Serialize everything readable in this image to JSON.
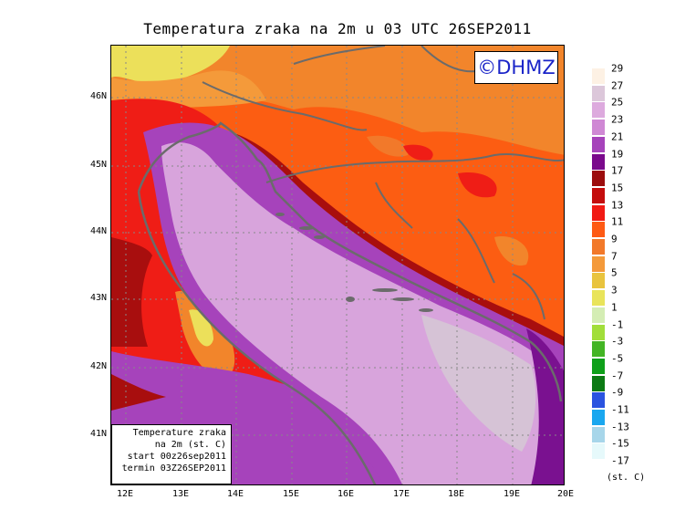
{
  "title": "Temperatura zraka na 2m u 03 UTC 26SEP2011",
  "badge": "©DHMZ",
  "infobox": {
    "line1": "Temperature zraka",
    "line2": "na 2m (st. C)",
    "line3": "start 00z26sep2011",
    "line4": "termin 03Z26SEP2011"
  },
  "y_axis": [
    "46N",
    "45N",
    "44N",
    "43N",
    "42N",
    "41N"
  ],
  "x_axis": [
    "12E",
    "13E",
    "14E",
    "15E",
    "16E",
    "17E",
    "18E",
    "19E",
    "20E"
  ],
  "legend": {
    "labels": [
      "29",
      "27",
      "25",
      "23",
      "21",
      "19",
      "17",
      "15",
      "13",
      "11",
      "9",
      "7",
      "5",
      "3",
      "1",
      "-1",
      "-3",
      "-5",
      "-7",
      "-9",
      "-11",
      "-13",
      "-15",
      "-17"
    ],
    "colors": [
      "#fdf1e4",
      "#dcc7da",
      "#ddaade",
      "#cf88d4",
      "#a643bb",
      "#7a0a8c",
      "#9c0d0d",
      "#c40d0d",
      "#f11a14",
      "#fe5a14",
      "#f2792a",
      "#f49a3a",
      "#e9c43e",
      "#e9e45a",
      "#d4edb4",
      "#a1de3a",
      "#43b524",
      "#0fa01a",
      "#0c7a14",
      "#2a53e0",
      "#1aa7ef",
      "#a7d6ea",
      "#e6f9fb"
    ],
    "unit": "(st. C)"
  },
  "colors": {
    "sea_warm": "#d8a4dc",
    "sea_cool": "#d6c3d6",
    "coast": "#a64bc0",
    "deep_purple": "#7a1190",
    "dark_red": "#a80e0e",
    "red": "#ef1d16",
    "orange": "#fc5d12",
    "light_orange": "#f2852b",
    "yellow": "#ece05a",
    "border_line": "#6b6b6b"
  }
}
